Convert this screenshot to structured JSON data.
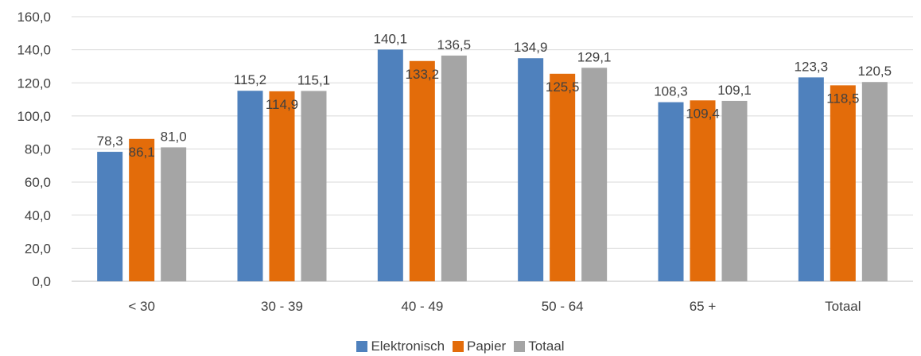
{
  "chart_data": {
    "type": "bar",
    "categories": [
      "< 30",
      "30 - 39",
      "40 - 49",
      "50 - 64",
      "65 +",
      "Totaal"
    ],
    "series": [
      {
        "name": "Elektronisch",
        "color": "#4f81bd",
        "values": [
          78.3,
          115.2,
          140.1,
          134.9,
          108.3,
          123.3
        ],
        "labels": [
          "78,3",
          "115,2",
          "140,1",
          "134,9",
          "108,3",
          "123,3"
        ]
      },
      {
        "name": "Papier",
        "color": "#e36c0a",
        "values": [
          86.1,
          114.9,
          133.2,
          125.5,
          109.4,
          118.5
        ],
        "labels": [
          "86,1",
          "114,9",
          "133,2",
          "125,5",
          "109,4",
          "118,5"
        ]
      },
      {
        "name": "Totaal",
        "color": "#a5a5a5",
        "values": [
          81.0,
          115.1,
          136.5,
          129.1,
          109.1,
          120.5
        ],
        "labels": [
          "81,0",
          "115,1",
          "136,5",
          "129,1",
          "109,1",
          "120,5"
        ]
      }
    ],
    "ylim": [
      0,
      160
    ],
    "yticks": [
      "0,0",
      "20,0",
      "40,0",
      "60,0",
      "80,0",
      "100,0",
      "120,0",
      "140,0",
      "160,0"
    ],
    "grid": true,
    "legend_position": "bottom"
  }
}
